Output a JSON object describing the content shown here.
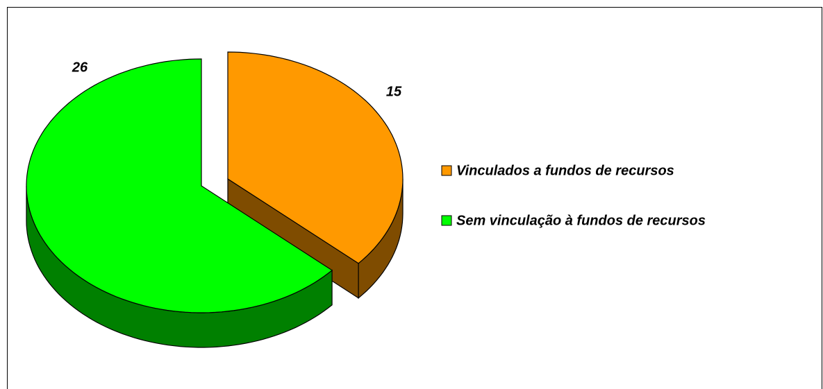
{
  "chart_data": {
    "type": "pie",
    "categories": [
      "Vinculados a fundos de recursos",
      "Sem vinculação à fundos de recursos"
    ],
    "values": [
      15,
      26
    ],
    "colors": [
      "#FF9900",
      "#00FF00"
    ],
    "side_colors": [
      "#7F4C00",
      "#008000"
    ],
    "legend": "right"
  }
}
